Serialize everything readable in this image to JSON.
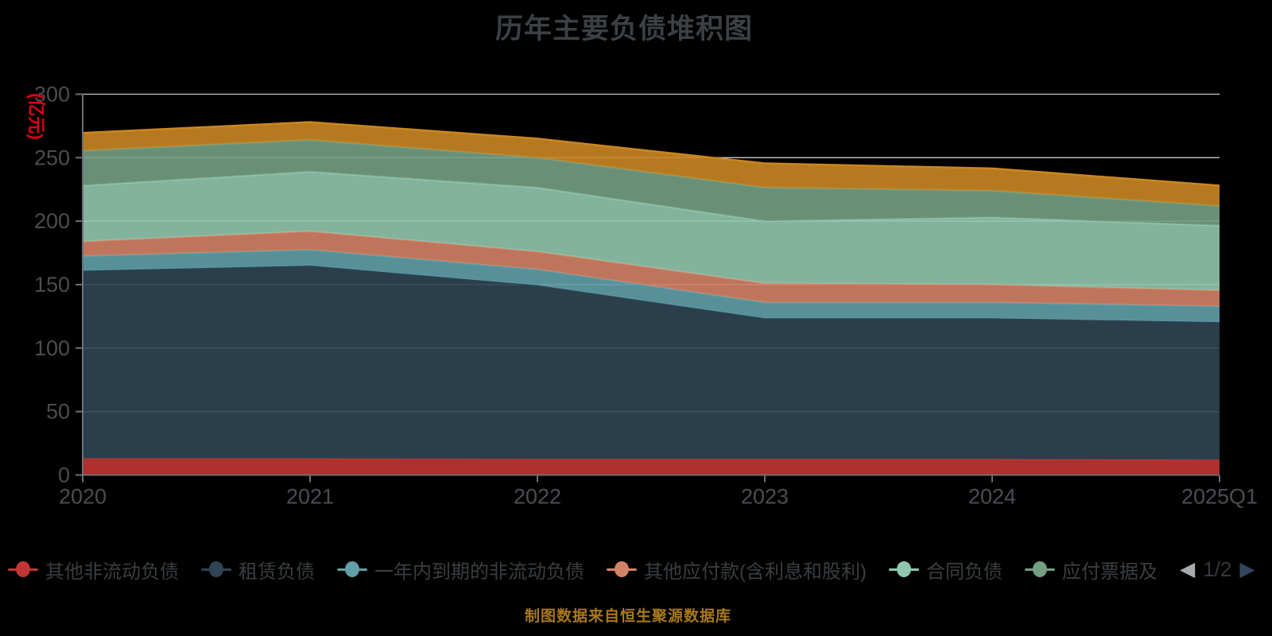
{
  "title": "历年主要负债堆积图",
  "source_note": "制图数据来自恒生聚源数据库",
  "legend": {
    "pager": {
      "current": "1/2",
      "prev_icon": "left-triangle",
      "next_icon": "right-triangle"
    },
    "items": [
      {
        "label": "其他非流动负债",
        "color": "#c23531"
      },
      {
        "label": "租赁负债",
        "color": "#2f4554"
      },
      {
        "label": "一年内到期的非流动负债",
        "color": "#61a0a8"
      },
      {
        "label": "其他应付款(含利息和股利)",
        "color": "#d48265"
      },
      {
        "label": "合同负债",
        "color": "#91c7ae"
      },
      {
        "label": "应付票据及",
        "color": "#749f83"
      }
    ]
  },
  "chart_data": {
    "type": "area",
    "stacked": true,
    "title": "历年主要负债堆积图",
    "xlabel": "",
    "ylabel": "(亿元)",
    "categories": [
      "2020",
      "2021",
      "2022",
      "2023",
      "2024",
      "2025Q1"
    ],
    "series": [
      {
        "name": "其他非流动负债",
        "color": "#c23531",
        "values": [
          13,
          13,
          12.5,
          12.5,
          12.5,
          12
        ]
      },
      {
        "name": "租赁负债",
        "color": "#2f4554",
        "values": [
          148,
          152,
          137,
          111,
          111,
          108.5
        ]
      },
      {
        "name": "一年内到期的非流动负债",
        "color": "#61a0a8",
        "values": [
          11.5,
          12.5,
          12.5,
          12.5,
          12.5,
          12.5
        ]
      },
      {
        "name": "其他应付款(含利息和股利)",
        "color": "#d48265",
        "values": [
          11.5,
          14.5,
          14,
          15,
          14,
          12.5
        ]
      },
      {
        "name": "合同负债",
        "color": "#91c7ae",
        "values": [
          44,
          47,
          50.5,
          49,
          53,
          51
        ]
      },
      {
        "name": "应付票据及",
        "color": "#749f83",
        "values": [
          27.5,
          25,
          23.5,
          26.5,
          21,
          15.5
        ]
      },
      {
        "name": "",
        "color": "#ca8622",
        "values": [
          14,
          14,
          15,
          19,
          17.5,
          16
        ]
      }
    ],
    "stack_totals": [
      269.5,
      278,
      265,
      245.5,
      241.5,
      228
    ],
    "ylim": [
      0,
      300
    ],
    "yticks": [
      0,
      50,
      100,
      150,
      200,
      250,
      300
    ],
    "grid": true,
    "legend_position": "bottom",
    "legend_page": "1/2"
  },
  "colors": {
    "background": "#000000",
    "title_text": "#3c4043",
    "axis_label": "#4a4d51",
    "axis_line": "#6e7079",
    "grid_line": "#c6c9cc",
    "ylabel_text": "#dd0011",
    "legend_text": "#3a3e41",
    "source_text": "#a9791a",
    "pager_text": "#36393d",
    "pager_prev": "#a8abae",
    "pager_next": "#31465a"
  }
}
